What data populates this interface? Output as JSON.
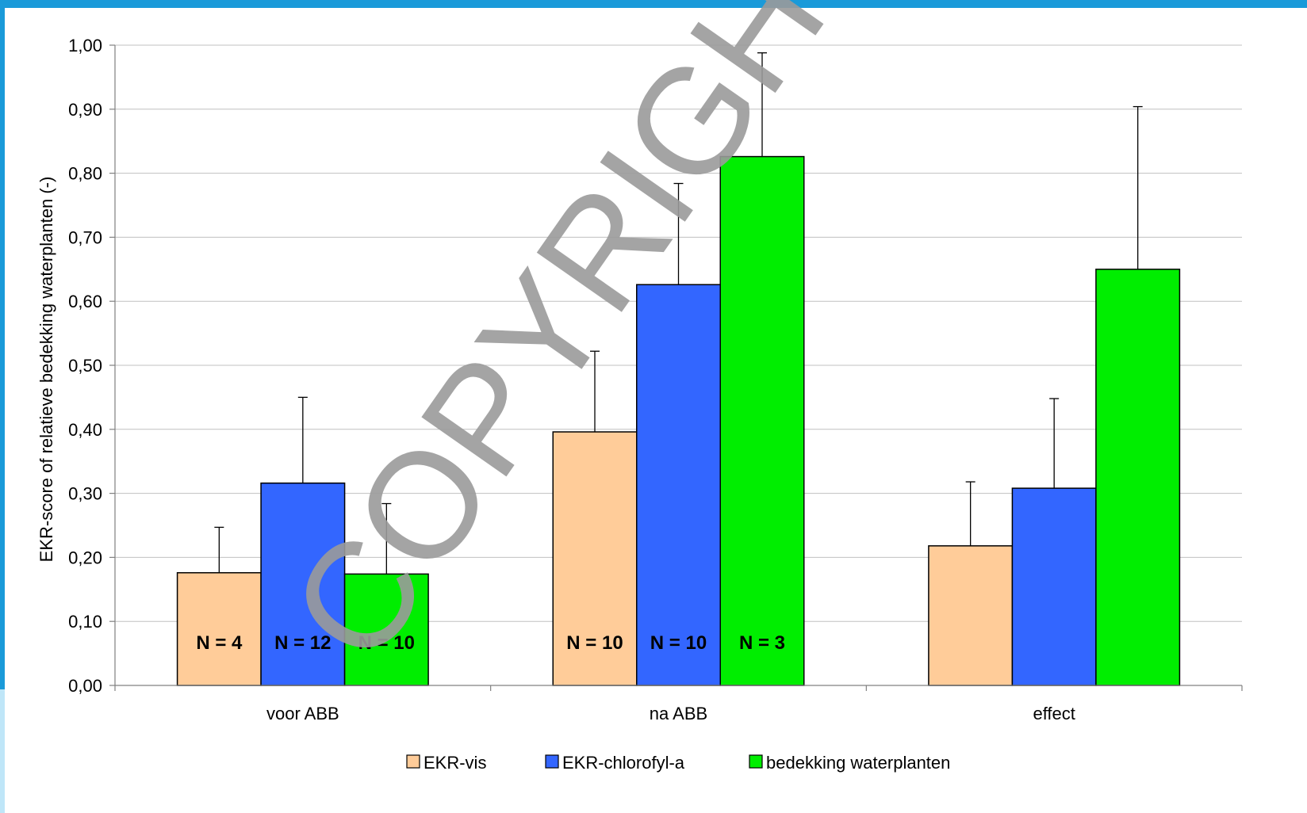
{
  "colors": {
    "frame_top": "#1a9ad9",
    "frame_left": "#1a9ad9",
    "frame_left_light": "#bfe6f8",
    "grid": "#c0c0c0",
    "axis": "#808080",
    "bar_outline": "#000000"
  },
  "watermark": "COPYRIGHT",
  "chart_data": {
    "type": "bar",
    "title": "",
    "xlabel": "",
    "ylabel": "EKR-score of relatieve bedekking waterplanten (-)",
    "ylim": [
      0,
      1
    ],
    "ytick_labels": [
      "0,00",
      "0,10",
      "0,20",
      "0,30",
      "0,40",
      "0,50",
      "0,60",
      "0,70",
      "0,80",
      "0,90",
      "1,00"
    ],
    "grid": true,
    "legend_position": "bottom",
    "categories": [
      "voor ABB",
      "na ABB",
      "effect"
    ],
    "series": [
      {
        "name": "EKR-vis",
        "color": "#ffcc99",
        "values": [
          0.176,
          0.396,
          0.218
        ],
        "errors": [
          0.071,
          0.126,
          0.1
        ],
        "n_labels": [
          "N = 4",
          "N = 10",
          ""
        ]
      },
      {
        "name": "EKR-chlorofyl-a",
        "color": "#3366ff",
        "values": [
          0.316,
          0.626,
          0.308
        ],
        "errors": [
          0.134,
          0.158,
          0.14
        ],
        "n_labels": [
          "N = 12",
          "N = 10",
          ""
        ]
      },
      {
        "name": "bedekking waterplanten",
        "color": "#00ee00",
        "values": [
          0.174,
          0.826,
          0.65
        ],
        "errors": [
          0.11,
          0.162,
          0.254
        ],
        "n_labels": [
          "N = 10",
          "N = 3",
          ""
        ]
      }
    ]
  }
}
